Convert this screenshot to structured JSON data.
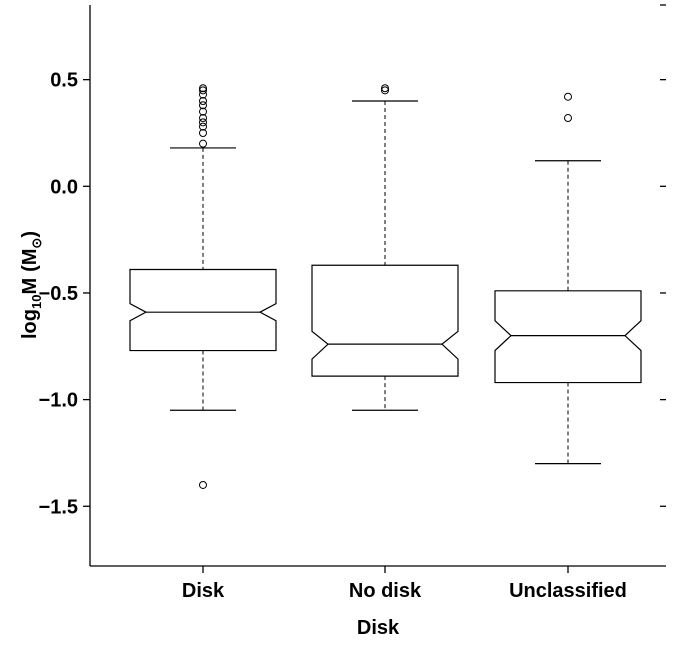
{
  "chart_data": {
    "type": "boxplot",
    "notched": true,
    "xlabel": "Disk",
    "ylabel": {
      "prefix": "log",
      "prefix_sub": "10",
      "var": "M",
      "unit_open": "(M",
      "unit_sub": "⊙",
      "unit_close": ")"
    },
    "ylim": [
      -1.78,
      0.85
    ],
    "yticks": [
      0.5,
      0.0,
      -0.5,
      -1.0,
      -1.5
    ],
    "ytick_labels": [
      "0.5",
      "0.0",
      "−0.5",
      "−1.0",
      "−1.5"
    ],
    "categories": [
      "Disk",
      "No disk",
      "Unclassified"
    ],
    "boxes": [
      {
        "name": "Disk",
        "whisker_low": -1.05,
        "q1": -0.77,
        "median": -0.59,
        "q3": -0.39,
        "whisker_high": 0.18,
        "notch_low": -0.63,
        "notch_high": -0.55,
        "outliers": [
          0.46,
          0.45,
          0.43,
          0.4,
          0.38,
          0.35,
          0.32,
          0.3,
          0.28,
          0.25,
          0.2,
          -1.4
        ]
      },
      {
        "name": "No disk",
        "whisker_low": -1.05,
        "q1": -0.89,
        "median": -0.74,
        "q3": -0.37,
        "whisker_high": 0.4,
        "notch_low": -0.81,
        "notch_high": -0.68,
        "outliers": [
          0.46,
          0.45
        ]
      },
      {
        "name": "Unclassified",
        "whisker_low": -1.3,
        "q1": -0.92,
        "median": -0.7,
        "q3": -0.49,
        "whisker_high": 0.12,
        "notch_low": -0.77,
        "notch_high": -0.63,
        "outliers": [
          0.42,
          0.32
        ]
      }
    ]
  }
}
